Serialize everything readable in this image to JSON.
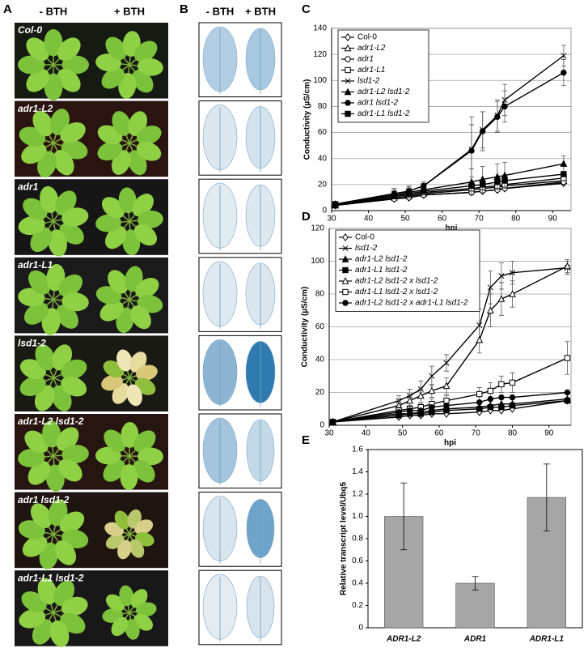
{
  "panel_labels": [
    "A",
    "B",
    "C",
    "D",
    "E"
  ],
  "photos": {
    "headers": [
      "- BTH",
      "+ BTH"
    ],
    "rows": [
      "Col-0",
      "adr1-L2",
      "adr1",
      "adr1-L1",
      "lsd1-2",
      "adr1-L2 lsd1-2",
      "adr1 lsd1-2",
      "adr1-L1 lsd1-2"
    ]
  },
  "stains": {
    "headers": [
      "- BTH",
      "+ BTH"
    ]
  },
  "chart_data": [
    {
      "type": "line",
      "xlabel": "hpi",
      "ylabel": "Conductivity (µS/cm)",
      "x": [
        31,
        47,
        51,
        55,
        68,
        71,
        75,
        77,
        93
      ],
      "xlim": [
        30,
        95
      ],
      "xticks": [
        30,
        40,
        50,
        60,
        70,
        80,
        90
      ],
      "ylim": [
        0,
        140
      ],
      "yticks": [
        0,
        20,
        40,
        60,
        80,
        100,
        120,
        140
      ],
      "grid": true,
      "legend": "upper left",
      "series": [
        {
          "name": "Col-0",
          "color": "#000000",
          "marker": "diamond-open",
          "values": [
            4,
            9,
            10,
            12,
            14,
            15,
            16,
            17,
            21
          ]
        },
        {
          "name": "adr1-L2",
          "color": "#000000",
          "marker": "triangle-open",
          "values": [
            4,
            10,
            11,
            13,
            16,
            17,
            18,
            19,
            23
          ]
        },
        {
          "name": "adr1",
          "color": "#000000",
          "marker": "circle-open",
          "values": [
            4,
            9,
            10,
            12,
            14,
            15,
            16,
            17,
            22
          ]
        },
        {
          "name": "adr1-L1",
          "color": "#000000",
          "marker": "square-open",
          "values": [
            5,
            11,
            12,
            14,
            17,
            18,
            19,
            20,
            25
          ]
        },
        {
          "name": "lsd1-2",
          "color": "#000000",
          "marker": "cross",
          "values": [
            5,
            13,
            15,
            19,
            47,
            62,
            73,
            85,
            119
          ],
          "errors": [
            2,
            4,
            4,
            3,
            25,
            14,
            12,
            12,
            8
          ]
        },
        {
          "name": "adr1-L2 lsd1-2",
          "color": "#000000",
          "marker": "triangle",
          "values": [
            5,
            12,
            14,
            16,
            22,
            24,
            26,
            27,
            36
          ],
          "errors": [
            1,
            3,
            3,
            3,
            10,
            10,
            10,
            10,
            6
          ]
        },
        {
          "name": "adr1 lsd1-2",
          "color": "#000000",
          "marker": "circle",
          "values": [
            5,
            13,
            15,
            19,
            46,
            61,
            72,
            80,
            106
          ],
          "errors": [
            2,
            3,
            3,
            3,
            20,
            15,
            12,
            12,
            10
          ]
        },
        {
          "name": "adr1-L1 lsd1-2",
          "color": "#000000",
          "marker": "square",
          "values": [
            4,
            11,
            13,
            15,
            19,
            20,
            22,
            23,
            28
          ]
        }
      ]
    },
    {
      "type": "line",
      "xlabel": "hpi",
      "ylabel": "Conductivity (µS/cm)",
      "x": [
        31,
        49,
        52,
        55,
        58,
        62,
        71,
        74,
        77,
        80,
        95
      ],
      "xlim": [
        30,
        96
      ],
      "xticks": [
        30,
        40,
        50,
        60,
        70,
        80,
        90
      ],
      "ylim": [
        0,
        120
      ],
      "yticks": [
        0,
        20,
        40,
        60,
        80,
        100,
        120
      ],
      "grid": true,
      "legend": "upper left",
      "series": [
        {
          "name": "Col-0",
          "color": "#000000",
          "marker": "diamond-open",
          "values": [
            2,
            5,
            6,
            6,
            7,
            7,
            8,
            9,
            9,
            10,
            15
          ]
        },
        {
          "name": "lsd1-2",
          "color": "#000000",
          "marker": "cross",
          "values": [
            2,
            15,
            18,
            22,
            30,
            38,
            61,
            84,
            91,
            93,
            96
          ],
          "errors": [
            1,
            3,
            4,
            5,
            6,
            5,
            10,
            10,
            8,
            7,
            4
          ]
        },
        {
          "name": "adr1-L2 lsd1-2",
          "color": "#000000",
          "marker": "triangle",
          "values": [
            2,
            7,
            7,
            8,
            9,
            10,
            11,
            12,
            13,
            13,
            16
          ]
        },
        {
          "name": "adr1-L1 lsd1-2",
          "color": "#000000",
          "marker": "square",
          "values": [
            2,
            6,
            7,
            7,
            8,
            9,
            10,
            11,
            11,
            12,
            15
          ]
        },
        {
          "name": "adr1-L2 lsd1-2 x lsd1-2",
          "color": "#000000",
          "marker": "triangle-open",
          "values": [
            2,
            12,
            15,
            18,
            21,
            24,
            52,
            70,
            77,
            80,
            97
          ],
          "errors": [
            1,
            3,
            3,
            4,
            4,
            5,
            8,
            10,
            10,
            8,
            4
          ]
        },
        {
          "name": "adr1-L1 lsd1-2 x lsd1-2",
          "color": "#000000",
          "marker": "square-open",
          "values": [
            2,
            9,
            10,
            11,
            13,
            15,
            19,
            21,
            25,
            26,
            41
          ],
          "errors": [
            1,
            2,
            2,
            2,
            3,
            3,
            4,
            5,
            5,
            6,
            10
          ]
        },
        {
          "name": "adr1-L2 lsd1-2 x adr1-L1 lsd1-2",
          "color": "#000000",
          "marker": "circle",
          "values": [
            2,
            8,
            9,
            9,
            11,
            12,
            14,
            16,
            17,
            17,
            20
          ]
        }
      ]
    },
    {
      "type": "bar",
      "ylabel": "Relative transcript level/Ubq5",
      "categories": [
        "ADR1-L2",
        "ADR1",
        "ADR1-L1"
      ],
      "values": [
        1.0,
        0.4,
        1.17
      ],
      "errors": [
        0.3,
        0.06,
        0.3
      ],
      "color": "#a6a6a6",
      "ylim": [
        0,
        1.6
      ],
      "yticks": [
        0,
        0.2,
        0.4,
        0.6,
        0.8,
        {
          "value": 1,
          "label": "1.0"
        },
        1.2,
        1.4,
        1.6
      ],
      "grid": false
    }
  ]
}
